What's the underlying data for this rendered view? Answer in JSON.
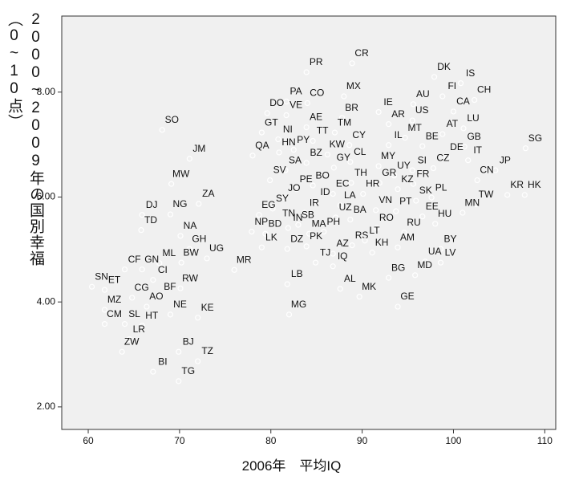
{
  "chart_data": {
    "type": "scatter",
    "x_label": "2006年　平均IQ",
    "y_label": "2000~2009年の国別幸福 （0~10点）",
    "xlim": [
      57.1,
      111.2
    ],
    "xticks": [
      60,
      70,
      80,
      90,
      100,
      110
    ],
    "ylim": [
      1.57,
      9.45
    ],
    "yticks": [
      {
        "value": 2,
        "label": "2.00"
      },
      {
        "value": 4,
        "label": "4.00"
      },
      {
        "value": 6,
        "label": "6.00"
      },
      {
        "value": 8,
        "label": "8.00"
      }
    ],
    "color": "#ffffff",
    "point_labels": [
      "CR",
      "PR",
      "DK",
      "IS",
      "MX",
      "FI",
      "CH",
      "PA",
      "CO",
      "AU",
      "CA",
      "DO",
      "VE",
      "IE",
      "BR",
      "US",
      "LU",
      "AR",
      "AE",
      "TM",
      "AT",
      "GT",
      "SO",
      "MT",
      "NI",
      "TT",
      "IL",
      "BE",
      "GB",
      "SG",
      "CY",
      "HN",
      "PY",
      "QA",
      "DE",
      "JM",
      "BZ",
      "KW",
      "CL",
      "IT",
      "MY",
      "SI",
      "CZ",
      "SA",
      "GY",
      "JP",
      "UY",
      "SV",
      "CN",
      "MW",
      "TH",
      "GR",
      "FR",
      "BO",
      "KZ",
      "PE",
      "HR",
      "EC",
      "JO",
      "PL",
      "SK",
      "KR",
      "HK",
      "ZA",
      "ID",
      "LA",
      "TW",
      "SY",
      "VN",
      "PT",
      "MN",
      "DJ",
      "NG",
      "EG",
      "IR",
      "UZ",
      "EE",
      "BA",
      "HU",
      "TN",
      "SB",
      "RO",
      "TD",
      "NP",
      "BD",
      "IN",
      "MA",
      "PH",
      "RU",
      "NA",
      "PK",
      "RS",
      "LT",
      "AM",
      "BY",
      "LK",
      "DZ",
      "GH",
      "KH",
      "AZ",
      "UG",
      "TJ",
      "IQ",
      "UA",
      "LV",
      "ML",
      "BW",
      "CF",
      "GN",
      "MR",
      "CI",
      "BG",
      "MD",
      "SN",
      "ET",
      "LB",
      "RW",
      "AL",
      "BF",
      "CG",
      "MK",
      "AO",
      "MZ",
      "GE",
      "NE",
      "KE",
      "MG",
      "CM",
      "SL",
      "HT",
      "LR",
      "ZW",
      "BJ",
      "TZ",
      "BI",
      "TG"
    ],
    "x": [
      88.9,
      83.9,
      97.9,
      100.8,
      88.0,
      98.8,
      102.3,
      81.7,
      84.0,
      95.6,
      100.0,
      79.6,
      81.7,
      91.8,
      87.8,
      95.5,
      101.1,
      92.9,
      83.9,
      87.0,
      98.8,
      79.0,
      68.1,
      94.7,
      80.8,
      84.6,
      92.9,
      96.6,
      101.2,
      107.9,
      88.6,
      80.9,
      82.5,
      78.0,
      99.3,
      71.1,
      83.9,
      86.2,
      88.7,
      101.6,
      91.8,
      95.5,
      97.8,
      81.6,
      86.9,
      104.6,
      93.5,
      79.9,
      102.6,
      69.1,
      88.8,
      91.9,
      95.6,
      84.6,
      93.9,
      82.8,
      90.1,
      86.8,
      81.5,
      97.6,
      95.9,
      105.9,
      107.8,
      72.1,
      84.9,
      87.6,
      102.5,
      80.2,
      91.5,
      93.7,
      101.0,
      65.9,
      69.0,
      78.7,
      83.7,
      87.1,
      96.6,
      88.7,
      98.0,
      80.9,
      83.0,
      91.6,
      65.8,
      77.9,
      79.4,
      81.9,
      84.2,
      85.8,
      94.6,
      70.1,
      83.9,
      88.9,
      90.3,
      93.9,
      98.6,
      79.0,
      81.8,
      71.1,
      91.1,
      86.8,
      73.0,
      84.9,
      86.8,
      96.9,
      98.6,
      67.8,
      70.2,
      64.0,
      65.9,
      76.0,
      67.1,
      92.9,
      95.8,
      60.4,
      61.8,
      81.8,
      70.1,
      87.6,
      67.9,
      64.8,
      89.7,
      66.4,
      61.8,
      93.9,
      69.0,
      72.0,
      82.0,
      61.8,
      64.0,
      65.9,
      64.5,
      63.7,
      69.9,
      72.0,
      67.1,
      69.9
    ],
    "values": [
      8.55,
      8.38,
      8.29,
      8.17,
      7.92,
      7.92,
      7.85,
      7.82,
      7.79,
      7.77,
      7.63,
      7.6,
      7.56,
      7.62,
      7.51,
      7.46,
      7.31,
      7.39,
      7.33,
      7.23,
      7.2,
      7.23,
      7.28,
      7.13,
      7.1,
      7.07,
      6.99,
      6.97,
      6.96,
      6.93,
      6.99,
      6.85,
      6.9,
      6.79,
      6.76,
      6.73,
      6.65,
      6.81,
      6.67,
      6.7,
      6.59,
      6.51,
      6.55,
      6.51,
      6.56,
      6.51,
      6.41,
      6.32,
      6.32,
      6.25,
      6.27,
      6.27,
      6.25,
      6.22,
      6.15,
      6.15,
      6.06,
      6.06,
      5.98,
      5.99,
      5.93,
      6.04,
      6.04,
      5.87,
      5.9,
      5.84,
      5.86,
      5.78,
      5.75,
      5.73,
      5.7,
      5.66,
      5.67,
      5.66,
      5.7,
      5.61,
      5.63,
      5.57,
      5.49,
      5.5,
      5.47,
      5.41,
      5.37,
      5.34,
      5.3,
      5.41,
      5.3,
      5.34,
      5.32,
      5.26,
      5.06,
      5.08,
      5.17,
      5.04,
      5.01,
      5.04,
      5.01,
      5.01,
      4.94,
      4.92,
      4.83,
      4.75,
      4.68,
      4.77,
      4.75,
      4.74,
      4.75,
      4.62,
      4.62,
      4.61,
      4.42,
      4.46,
      4.51,
      4.29,
      4.23,
      4.34,
      4.26,
      4.25,
      4.1,
      4.08,
      4.1,
      3.91,
      3.85,
      3.91,
      3.76,
      3.7,
      3.76,
      3.58,
      3.58,
      3.55,
      3.29,
      3.05,
      3.05,
      2.87,
      2.67,
      2.49
    ]
  }
}
